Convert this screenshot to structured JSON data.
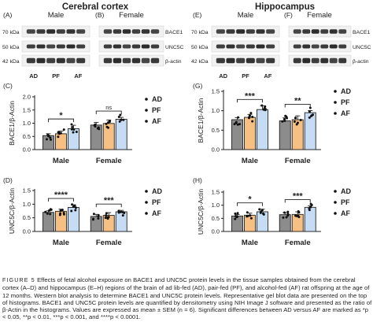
{
  "regions": {
    "left": "Cerebral cortex",
    "right": "Hippocampus"
  },
  "colors": {
    "AD": "#8c8c8c",
    "PF": "#f6bf84",
    "AF": "#c6dcf4",
    "edge": "#222222",
    "blot_bg": "#f1f1f1",
    "band": "#1f1f1f"
  },
  "blots": [
    {
      "letter": "(A)",
      "group": "Male",
      "region": "Cerebral cortex",
      "kda": [
        "70 kDa",
        "50 kDa",
        "42 kDa"
      ],
      "lanes": [
        "AD",
        "PF",
        "AF"
      ]
    },
    {
      "letter": "(B)",
      "group": "Female",
      "region": "Cerebral cortex",
      "rowlabels": [
        "BACE1",
        "UNC5C",
        "β-actin"
      ]
    },
    {
      "letter": "(E)",
      "group": "Male",
      "region": "Hippocampus",
      "kda": [
        "70 kDa",
        "50 kDa",
        "42 kDa"
      ],
      "lanes": [
        "AD",
        "PF",
        "AF"
      ]
    },
    {
      "letter": "(F)",
      "group": "Female",
      "region": "Hippocampus",
      "rowlabels": [
        "BACE1",
        "UNC5C",
        "β-actin"
      ]
    }
  ],
  "chart_data": [
    {
      "letter": "(C)",
      "type": "bar",
      "region": "Cerebral cortex",
      "ylabel": "BACE1/β-Actin",
      "ylim": [
        0,
        2.0
      ],
      "yticks": [
        "0.0",
        "0.5",
        "1.0",
        "1.5",
        "2.0"
      ],
      "categories": [
        "Male",
        "Female"
      ],
      "series": [
        {
          "name": "AD",
          "values": [
            0.53,
            0.93
          ]
        },
        {
          "name": "PF",
          "values": [
            0.6,
            0.99
          ]
        },
        {
          "name": "AF",
          "values": [
            0.79,
            1.15
          ]
        }
      ],
      "annotations": [
        {
          "group": "Male",
          "text": "*"
        },
        {
          "group": "Female",
          "text": "ns"
        }
      ]
    },
    {
      "letter": "(D)",
      "type": "bar",
      "region": "Cerebral cortex",
      "ylabel": "UNC5C/β-Actin",
      "ylim": [
        0,
        1.5
      ],
      "yticks": [
        "0.0",
        "0.5",
        "1.0",
        "1.5"
      ],
      "categories": [
        "Male",
        "Female"
      ],
      "series": [
        {
          "name": "AD",
          "values": [
            0.7,
            0.55
          ]
        },
        {
          "name": "PF",
          "values": [
            0.74,
            0.59
          ]
        },
        {
          "name": "AF",
          "values": [
            0.88,
            0.72
          ]
        }
      ],
      "annotations": [
        {
          "group": "Male",
          "text": "****"
        },
        {
          "group": "Female",
          "text": "***"
        }
      ]
    },
    {
      "letter": "(G)",
      "type": "bar",
      "region": "Hippocampus",
      "ylabel": "BACE1/β-Actin",
      "ylim": [
        0,
        1.5
      ],
      "yticks": [
        "0.0",
        "0.5",
        "1.0",
        "1.5"
      ],
      "categories": [
        "Male",
        "Female"
      ],
      "series": [
        {
          "name": "AD",
          "values": [
            0.77,
            0.74
          ]
        },
        {
          "name": "PF",
          "values": [
            0.83,
            0.77
          ]
        },
        {
          "name": "AF",
          "values": [
            1.03,
            0.95
          ]
        }
      ],
      "annotations": [
        {
          "group": "Male",
          "text": "***"
        },
        {
          "group": "Female",
          "text": "**"
        }
      ]
    },
    {
      "letter": "(H)",
      "type": "bar",
      "region": "Hippocampus",
      "ylabel": "UNC5C/β-Actin",
      "ylim": [
        0,
        1.5
      ],
      "yticks": [
        "0.0",
        "0.5",
        "1.0",
        "1.5"
      ],
      "categories": [
        "Male",
        "Female"
      ],
      "series": [
        {
          "name": "AD",
          "values": [
            0.59,
            0.64
          ]
        },
        {
          "name": "PF",
          "values": [
            0.62,
            0.65
          ]
        },
        {
          "name": "AF",
          "values": [
            0.75,
            0.92
          ]
        }
      ],
      "annotations": [
        {
          "group": "Male",
          "text": "*"
        },
        {
          "group": "Female",
          "text": "***"
        }
      ]
    }
  ],
  "legend": [
    "AD",
    "PF",
    "AF"
  ],
  "caption": {
    "label": "FIGURE 5",
    "text": "Effects of fetal alcohol exposure on BACE1 and UNC5C protein levels in the tissue samples obtained from the cerebral cortex (A–D) and hippocampus (E–H) regions of the brain of ad lib-fed (AD), pair-fed (PF), and alcohol-fed (AF) rat offspring at the age of 12 months. Western blot analysis to determine BACE1 and UNC5C protein levels. Representative gel blot data are presented on the top of histograms. BACE1 and UNC5C protein levels are quantified by densitometry using NIH Image J software and presented as the ratio of β-Actin in the histograms. Values are expressed as mean ± SEM (n = 6). Significant differences between AD versus AF are marked as *p < 0.05, **p < 0.01, ***p < 0.001, and ****p < 0.0001."
  }
}
